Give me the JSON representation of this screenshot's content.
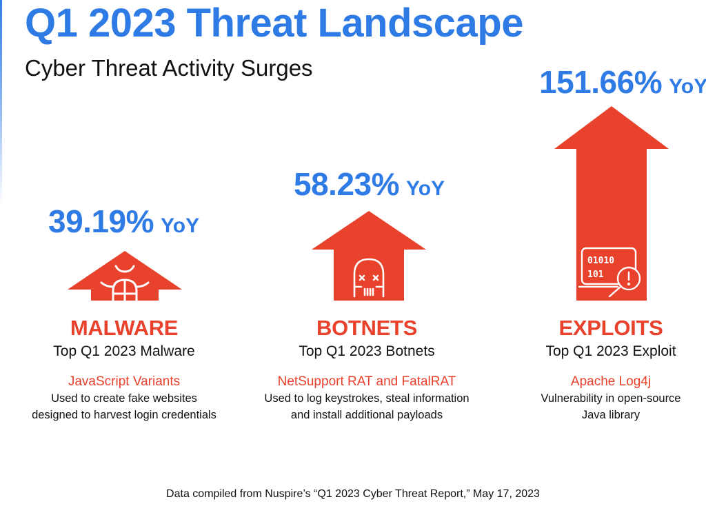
{
  "header": {
    "title": "Q1 2023 Threat Landscape",
    "subtitle": "Cyber Threat Activity Surges"
  },
  "colors": {
    "accent_blue": "#2f7be6",
    "threat_red": "#e8412c"
  },
  "threats": [
    {
      "pct": "39.19%",
      "yoy": "YoY",
      "category": "MALWARE",
      "top_label": "Top Q1 2023 Malware",
      "item": "JavaScript Variants",
      "desc_line1": "Used to create fake websites",
      "desc_line2": "designed to harvest login credentials",
      "icon": "bug-icon"
    },
    {
      "pct": "58.23%",
      "yoy": "YoY",
      "category": "BOTNETS",
      "top_label": "Top Q1 2023 Botnets",
      "item": "NetSupport RAT and FatalRAT",
      "desc_line1": "Used to log keystrokes, steal information",
      "desc_line2": "and install additional payloads",
      "icon": "robot-skull-icon"
    },
    {
      "pct": "151.66%",
      "yoy": "YoY",
      "category": "EXPLOITS",
      "top_label": "Top Q1 2023 Exploit",
      "item": "Apache Log4j",
      "desc_line1": "Vulnerability in open-source",
      "desc_line2": "Java library",
      "icon": "binary-laptop-alert-icon",
      "binary_row1": "01010",
      "binary_row2": "101"
    }
  ],
  "footer": {
    "source": "Data compiled from Nuspire’s “Q1 2023 Cyber Threat Report,” May 17, 2023"
  }
}
